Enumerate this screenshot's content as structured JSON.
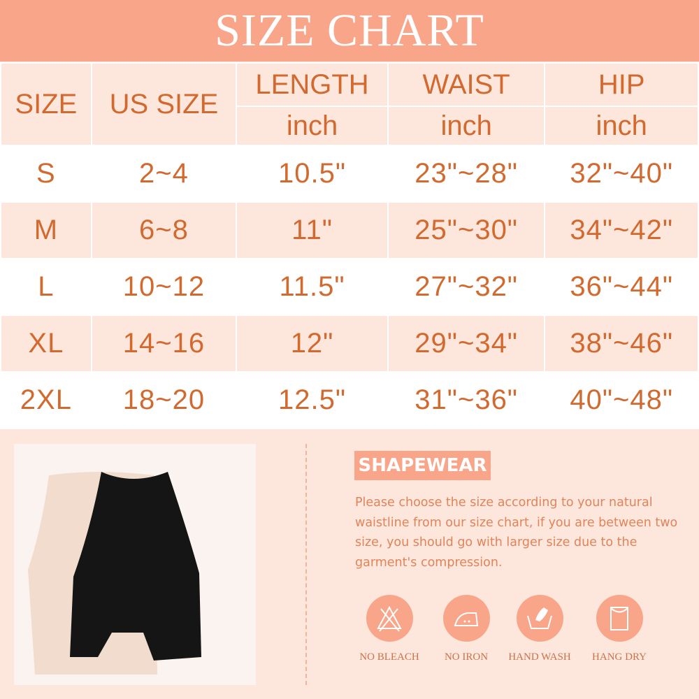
{
  "title": "SIZE CHART",
  "headers": {
    "size": "SIZE",
    "us_size": "US SIZE",
    "length": "LENGTH",
    "waist": "WAIST",
    "hip": "HIP",
    "unit": "inch"
  },
  "rows": [
    {
      "size": "S",
      "us": "2~4",
      "length": "10.5\"",
      "waist": "23\"~28\"",
      "hip": "32\"~40\""
    },
    {
      "size": "M",
      "us": "6~8",
      "length": "11\"",
      "waist": "25\"~30\"",
      "hip": "34\"~42\""
    },
    {
      "size": "L",
      "us": "10~12",
      "length": "11.5\"",
      "waist": "27\"~32\"",
      "hip": "36\"~44\""
    },
    {
      "size": "XL",
      "us": "14~16",
      "length": "12\"",
      "waist": "29\"~34\"",
      "hip": "38\"~46\""
    },
    {
      "size": "2XL",
      "us": "18~20",
      "length": "12.5\"",
      "waist": "31\"~36\"",
      "hip": "40\"~48\""
    }
  ],
  "product": {
    "badge": "SHAPEWEAR",
    "description": "Please choose the size according to your natural waistline from our size chart, if you are between two size, you should go with larger size due to the garment's compression."
  },
  "care": [
    {
      "icon": "no-bleach-icon",
      "label": "NO BLEACH"
    },
    {
      "icon": "no-iron-icon",
      "label": "NO IRON"
    },
    {
      "icon": "hand-wash-icon",
      "label": "HAND WASH"
    },
    {
      "icon": "hang-dry-icon",
      "label": "HANG DRY"
    }
  ],
  "colors": {
    "accent": "#f9a58a",
    "light": "#fde6dc",
    "text": "#d2692f"
  }
}
